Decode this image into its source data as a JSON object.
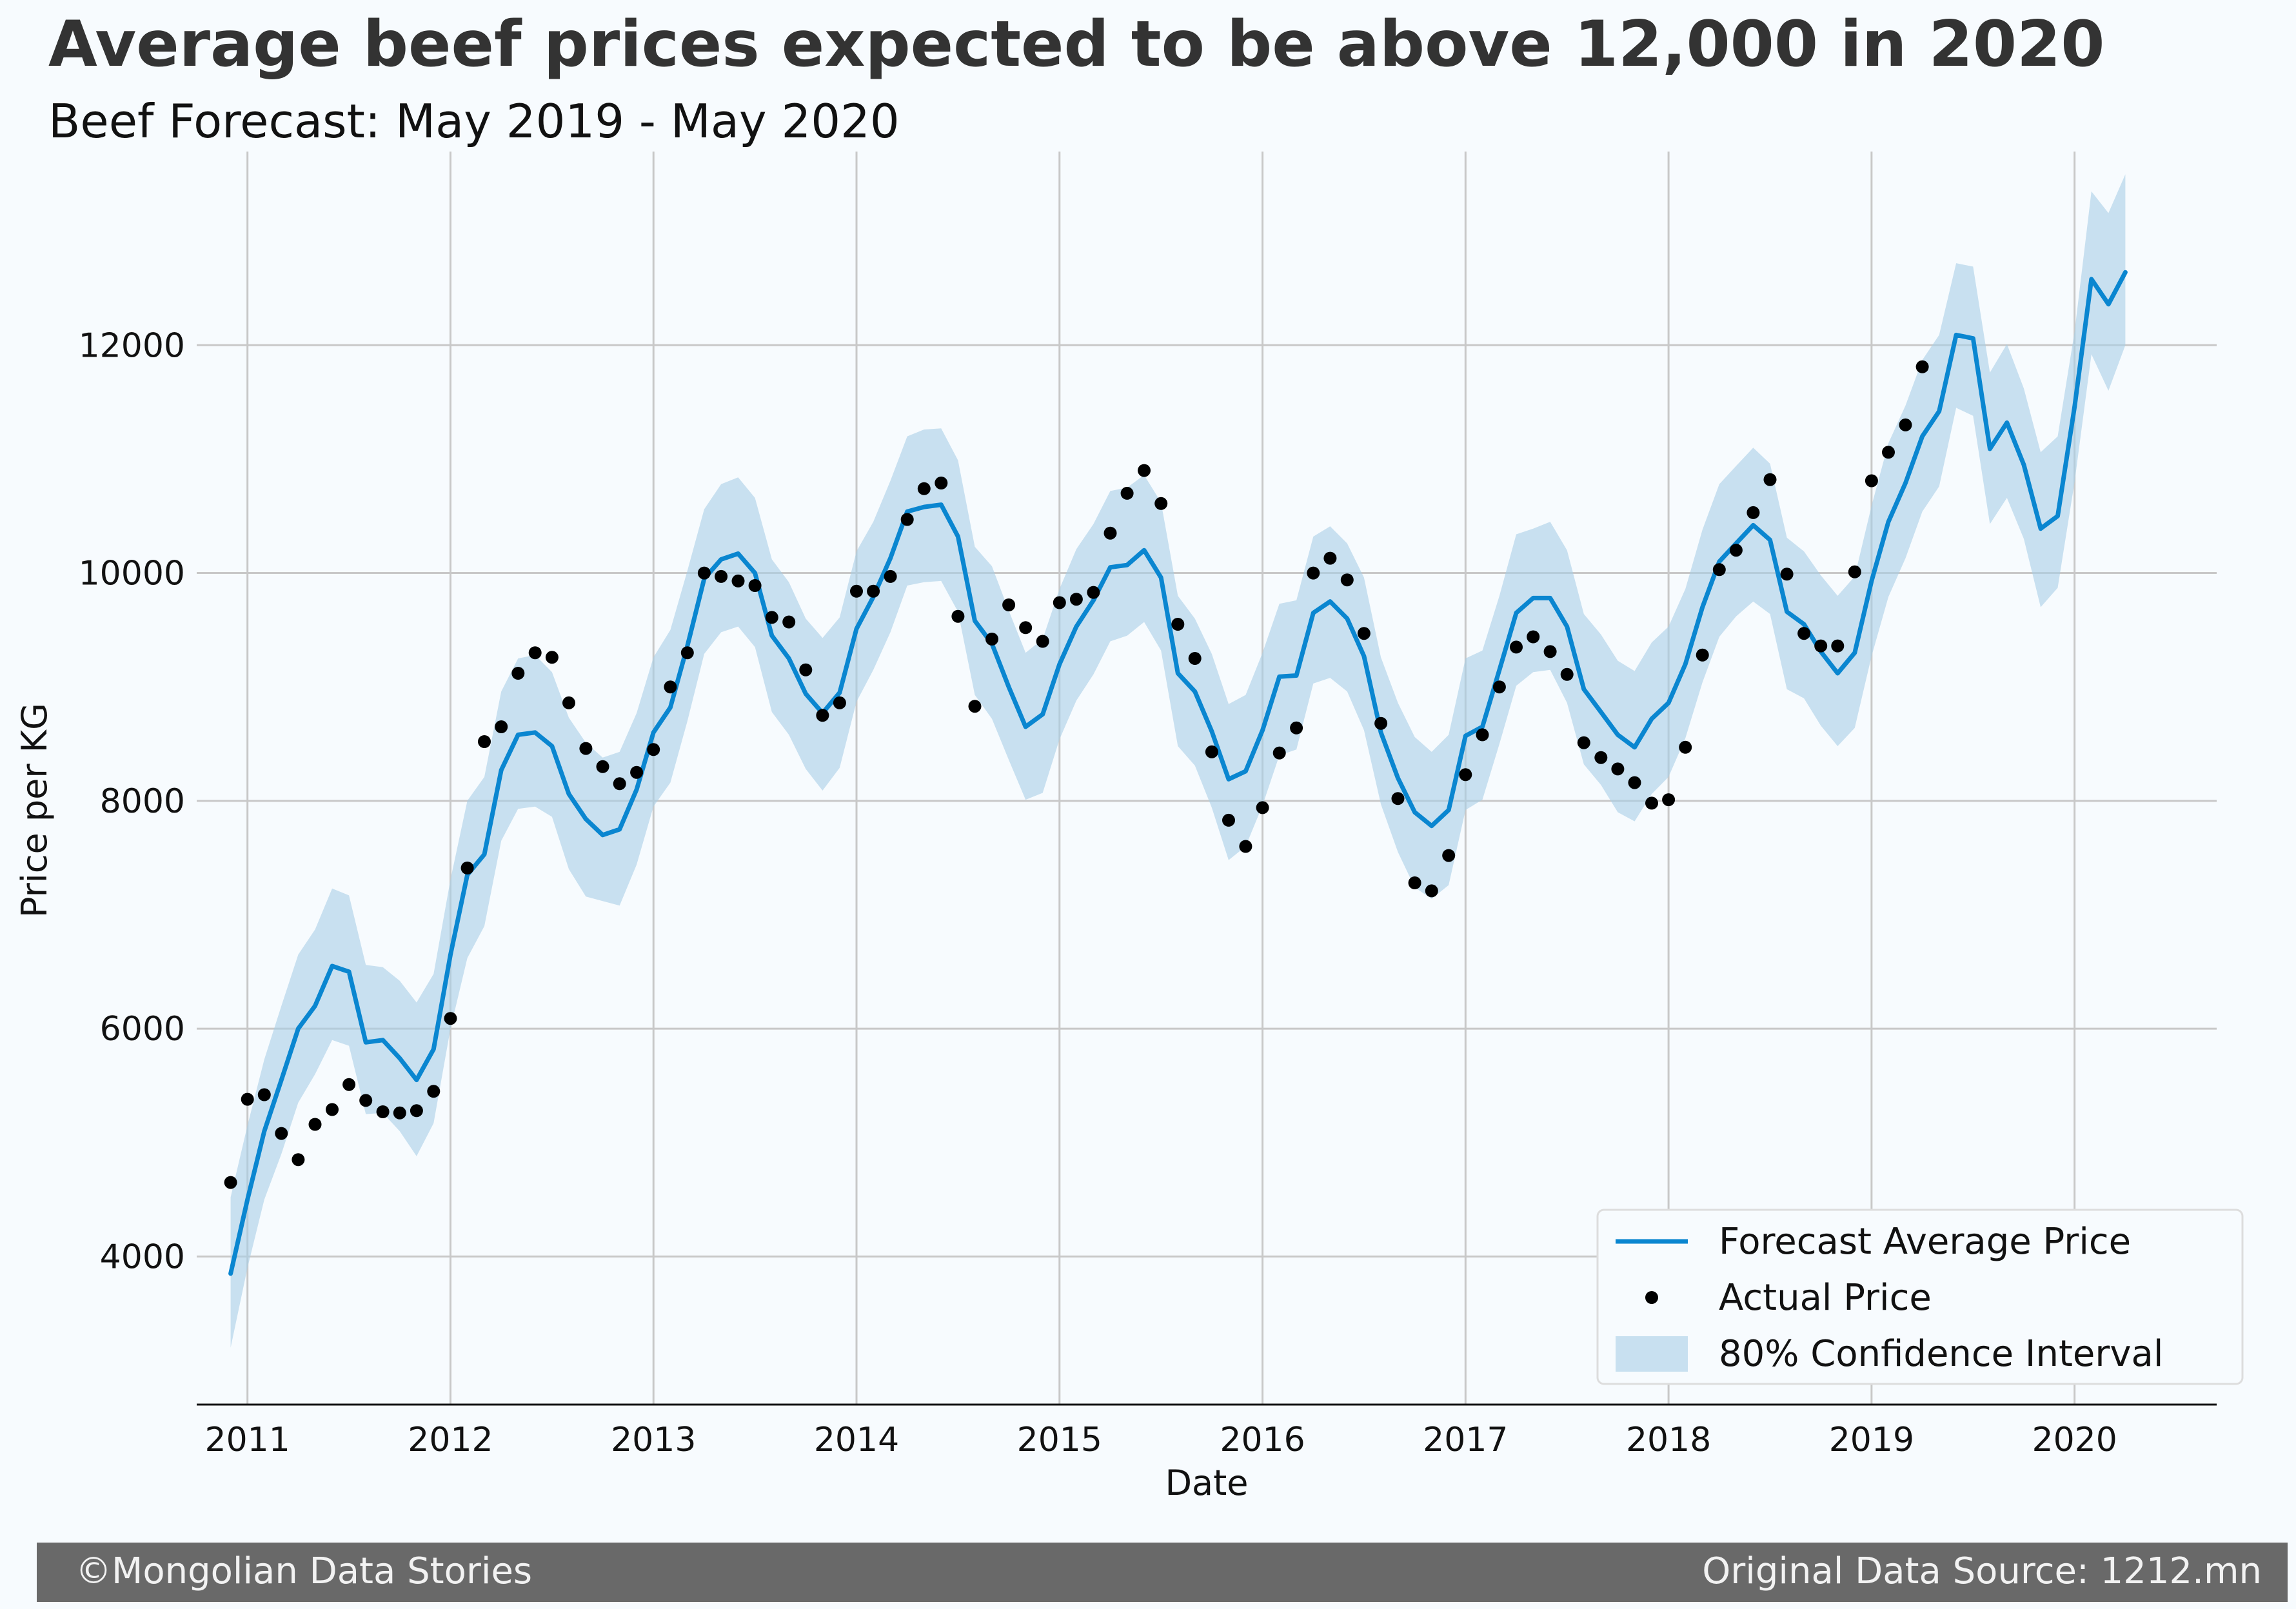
{
  "title": "Average beef prices expected to be above 12,000 in 2020",
  "subtitle": "Beef Forecast: May 2019 - May 2020",
  "footer": {
    "left": "©Mongolian Data Stories",
    "right": "Original Data Source: 1212.mn"
  },
  "chart_data": {
    "type": "line",
    "xlabel": "Date",
    "ylabel": "Price per KG",
    "xlim": [
      2010.75,
      2020.7
    ],
    "ylim": [
      2700,
      13700
    ],
    "x_ticks": [
      2011,
      2012,
      2013,
      2014,
      2015,
      2016,
      2017,
      2018,
      2019,
      2020
    ],
    "y_ticks": [
      4000,
      6000,
      8000,
      10000,
      12000
    ],
    "grid": true,
    "legend_position": "bottom-right",
    "colors": {
      "forecast": "#0a86d0",
      "actual": "#000000",
      "interval": "#a9cfe6",
      "grid": "#c8c8c8"
    },
    "series": [
      {
        "name": "Forecast Average Price",
        "kind": "line",
        "x": [
          2010.917,
          2011.0,
          2011.083,
          2011.167,
          2011.25,
          2011.333,
          2011.417,
          2011.5,
          2011.583,
          2011.667,
          2011.75,
          2011.833,
          2011.917,
          2012.0,
          2012.083,
          2012.167,
          2012.25,
          2012.333,
          2012.417,
          2012.5,
          2012.583,
          2012.667,
          2012.75,
          2012.833,
          2012.917,
          2013.0,
          2013.083,
          2013.167,
          2013.25,
          2013.333,
          2013.417,
          2013.5,
          2013.583,
          2013.667,
          2013.75,
          2013.833,
          2013.917,
          2014.0,
          2014.083,
          2014.167,
          2014.25,
          2014.333,
          2014.417,
          2014.5,
          2014.583,
          2014.667,
          2014.75,
          2014.833,
          2014.917,
          2015.0,
          2015.083,
          2015.167,
          2015.25,
          2015.333,
          2015.417,
          2015.5,
          2015.583,
          2015.667,
          2015.75,
          2015.833,
          2015.917,
          2016.0,
          2016.083,
          2016.167,
          2016.25,
          2016.333,
          2016.417,
          2016.5,
          2016.583,
          2016.667,
          2016.75,
          2016.833,
          2016.917,
          2017.0,
          2017.083,
          2017.167,
          2017.25,
          2017.333,
          2017.417,
          2017.5,
          2017.583,
          2017.667,
          2017.75,
          2017.833,
          2017.917,
          2018.0,
          2018.083,
          2018.167,
          2018.25,
          2018.333,
          2018.417,
          2018.5,
          2018.583,
          2018.667,
          2018.75,
          2018.833,
          2018.917,
          2019.0,
          2019.083,
          2019.167,
          2019.25,
          2019.333,
          2019.417,
          2019.5,
          2019.583,
          2019.667,
          2019.75,
          2019.833,
          2019.917,
          2020.0,
          2020.083,
          2020.167,
          2020.25
        ],
        "y": [
          3850,
          4500,
          5100,
          5550,
          6000,
          6200,
          6550,
          6500,
          5880,
          5900,
          5740,
          5550,
          5820,
          6650,
          7350,
          7530,
          8270,
          8580,
          8600,
          8480,
          8060,
          7840,
          7700,
          7750,
          8100,
          8600,
          8820,
          9360,
          9950,
          10120,
          10170,
          10000,
          9450,
          9250,
          8940,
          8770,
          8950,
          9510,
          9790,
          10130,
          10540,
          10580,
          10600,
          10320,
          9580,
          9380,
          9000,
          8650,
          8760,
          9200,
          9530,
          9760,
          10050,
          10070,
          10200,
          9960,
          9120,
          8960,
          8610,
          8190,
          8260,
          8620,
          9090,
          9100,
          9650,
          9750,
          9600,
          9270,
          8600,
          8200,
          7900,
          7780,
          7920,
          8570,
          8650,
          9150,
          9650,
          9780,
          9780,
          9530,
          8980,
          8780,
          8580,
          8470,
          8720,
          8860,
          9200,
          9700,
          10100,
          10260,
          10420,
          10290,
          9660,
          9550,
          9310,
          9120,
          9300,
          9930,
          10450,
          10790,
          11200,
          11420,
          12090,
          12060,
          11090,
          11320,
          10950,
          10390,
          10500,
          11460,
          12580,
          12360,
          12640
        ]
      },
      {
        "name": "80% Confidence Interval",
        "kind": "band",
        "x": [
          2010.917,
          2011.0,
          2011.083,
          2011.167,
          2011.25,
          2011.333,
          2011.417,
          2011.5,
          2011.583,
          2011.667,
          2011.75,
          2011.833,
          2011.917,
          2012.0,
          2012.083,
          2012.167,
          2012.25,
          2012.333,
          2012.417,
          2012.5,
          2012.583,
          2012.667,
          2012.75,
          2012.833,
          2012.917,
          2013.0,
          2013.083,
          2013.167,
          2013.25,
          2013.333,
          2013.417,
          2013.5,
          2013.583,
          2013.667,
          2013.75,
          2013.833,
          2013.917,
          2014.0,
          2014.083,
          2014.167,
          2014.25,
          2014.333,
          2014.417,
          2014.5,
          2014.583,
          2014.667,
          2014.75,
          2014.833,
          2014.917,
          2015.0,
          2015.083,
          2015.167,
          2015.25,
          2015.333,
          2015.417,
          2015.5,
          2015.583,
          2015.667,
          2015.75,
          2015.833,
          2015.917,
          2016.0,
          2016.083,
          2016.167,
          2016.25,
          2016.333,
          2016.417,
          2016.5,
          2016.583,
          2016.667,
          2016.75,
          2016.833,
          2016.917,
          2017.0,
          2017.083,
          2017.167,
          2017.25,
          2017.333,
          2017.417,
          2017.5,
          2017.583,
          2017.667,
          2017.75,
          2017.833,
          2017.917,
          2018.0,
          2018.083,
          2018.167,
          2018.25,
          2018.333,
          2018.417,
          2018.5,
          2018.583,
          2018.667,
          2018.75,
          2018.833,
          2018.917,
          2019.0,
          2019.083,
          2019.167,
          2019.25,
          2019.333,
          2019.417,
          2019.5,
          2019.583,
          2019.667,
          2019.75,
          2019.833,
          2019.917,
          2020.0,
          2020.083,
          2020.167,
          2020.25
        ],
        "lower": [
          3200,
          3900,
          4500,
          4900,
          5350,
          5600,
          5900,
          5850,
          5250,
          5260,
          5100,
          4880,
          5170,
          6000,
          6620,
          6900,
          7650,
          7930,
          7950,
          7860,
          7400,
          7160,
          7120,
          7080,
          7440,
          7950,
          8160,
          8700,
          9290,
          9480,
          9530,
          9350,
          8780,
          8580,
          8280,
          8090,
          8290,
          8870,
          9150,
          9480,
          9890,
          9920,
          9930,
          9660,
          8930,
          8720,
          8360,
          8010,
          8070,
          8540,
          8880,
          9110,
          9400,
          9450,
          9570,
          9320,
          8480,
          8310,
          7940,
          7480,
          7600,
          7960,
          8400,
          8450,
          9030,
          9080,
          8960,
          8620,
          7970,
          7550,
          7240,
          7140,
          7260,
          7920,
          8010,
          8500,
          9010,
          9130,
          9150,
          8860,
          8320,
          8140,
          7900,
          7820,
          8060,
          8210,
          8550,
          9040,
          9440,
          9620,
          9750,
          9640,
          8980,
          8900,
          8660,
          8480,
          8640,
          9270,
          9790,
          10130,
          10540,
          10760,
          11450,
          11380,
          10430,
          10660,
          10300,
          9700,
          9870,
          10800,
          11920,
          11600,
          12000
        ],
        "upper": [
          4520,
          5150,
          5730,
          6200,
          6650,
          6870,
          7230,
          7170,
          6560,
          6540,
          6420,
          6230,
          6480,
          7310,
          8000,
          8210,
          8960,
          9250,
          9280,
          9130,
          8730,
          8510,
          8380,
          8430,
          8770,
          9260,
          9500,
          10020,
          10560,
          10780,
          10840,
          10660,
          10120,
          9920,
          9600,
          9430,
          9610,
          10190,
          10450,
          10810,
          11200,
          11260,
          11270,
          10990,
          10230,
          10060,
          9670,
          9300,
          9420,
          9860,
          10210,
          10430,
          10720,
          10750,
          10860,
          10620,
          9800,
          9600,
          9290,
          8850,
          8930,
          9300,
          9730,
          9760,
          10320,
          10410,
          10260,
          9960,
          9260,
          8860,
          8560,
          8430,
          8580,
          9250,
          9320,
          9800,
          10340,
          10390,
          10450,
          10200,
          9640,
          9460,
          9230,
          9140,
          9390,
          9530,
          9860,
          10380,
          10780,
          10940,
          11100,
          10960,
          10310,
          10190,
          9980,
          9800,
          9970,
          10590,
          11140,
          11470,
          11870,
          12090,
          12720,
          12690,
          11760,
          12010,
          11620,
          11060,
          11200,
          12120,
          13350,
          13160,
          13500
        ]
      },
      {
        "name": "Actual Price",
        "kind": "scatter",
        "x": [
          2010.917,
          2011.0,
          2011.083,
          2011.167,
          2011.25,
          2011.333,
          2011.417,
          2011.5,
          2011.583,
          2011.667,
          2011.75,
          2011.833,
          2011.917,
          2012.0,
          2012.083,
          2012.167,
          2012.25,
          2012.333,
          2012.417,
          2012.5,
          2012.583,
          2012.667,
          2012.75,
          2012.833,
          2012.917,
          2013.0,
          2013.083,
          2013.167,
          2013.25,
          2013.333,
          2013.417,
          2013.5,
          2013.583,
          2013.667,
          2013.75,
          2013.833,
          2013.917,
          2014.0,
          2014.083,
          2014.167,
          2014.25,
          2014.333,
          2014.417,
          2014.5,
          2014.583,
          2014.667,
          2014.75,
          2014.833,
          2014.917,
          2015.0,
          2015.083,
          2015.167,
          2015.25,
          2015.333,
          2015.417,
          2015.5,
          2015.583,
          2015.667,
          2015.75,
          2015.833,
          2015.917,
          2016.0,
          2016.083,
          2016.167,
          2016.25,
          2016.333,
          2016.417,
          2016.5,
          2016.583,
          2016.667,
          2016.75,
          2016.833,
          2016.917,
          2017.0,
          2017.083,
          2017.167,
          2017.25,
          2017.333,
          2017.417,
          2017.5,
          2017.583,
          2017.667,
          2017.75,
          2017.833,
          2017.917,
          2018.0,
          2018.083,
          2018.167,
          2018.25,
          2018.333,
          2018.417,
          2018.5,
          2018.583,
          2018.667,
          2018.75,
          2018.833,
          2018.917,
          2019.0,
          2019.083,
          2019.167,
          2019.25
        ],
        "y": [
          4650,
          5380,
          5420,
          5080,
          4850,
          5160,
          5290,
          5510,
          5370,
          5270,
          5260,
          5280,
          5450,
          6090,
          7410,
          8520,
          8650,
          9120,
          9300,
          9260,
          8860,
          8460,
          8300,
          8150,
          8250,
          8450,
          9000,
          9300,
          10000,
          9970,
          9930,
          9890,
          9610,
          9570,
          9150,
          8750,
          8860,
          9840,
          9840,
          9970,
          10470,
          10740,
          10790,
          9620,
          8830,
          9420,
          9720,
          9520,
          9400,
          9740,
          9770,
          9830,
          10350,
          10700,
          10900,
          10610,
          9550,
          9250,
          8430,
          7830,
          7600,
          7940,
          8420,
          8640,
          10000,
          10130,
          9940,
          9470,
          8680,
          8020,
          7280,
          7210,
          7520,
          8230,
          8580,
          9000,
          9350,
          9440,
          9310,
          9110,
          8510,
          8380,
          8280,
          8160,
          7980,
          8010,
          8470,
          9280,
          10030,
          10200,
          10530,
          10820,
          9990,
          9470,
          9360,
          9360,
          10010,
          10810,
          11060,
          11300,
          11810
        ]
      }
    ]
  }
}
